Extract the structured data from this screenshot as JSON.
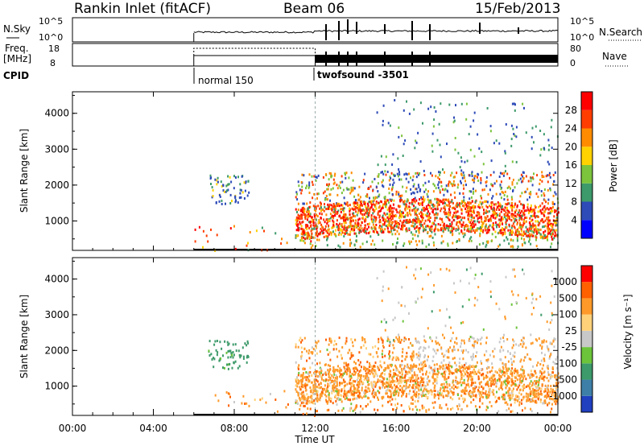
{
  "header": {
    "station": "Rankin Inlet (fitACF)",
    "beam": "Beam 06",
    "date": "15/Feb/2013"
  },
  "chart_data": [
    {
      "type": "line",
      "panel": "noise",
      "left_label": "N.Sky",
      "right_label": "N.Search",
      "left_ticks": [
        "10^5",
        "10^0"
      ],
      "right_ticks": [
        "10^5",
        "10^0"
      ],
      "scale": "log"
    },
    {
      "type": "line",
      "panel": "frequency-nave",
      "left_label_1": "Freq.",
      "left_label_2": "[MHz]",
      "right_label": "Nave",
      "left_ticks": [
        18,
        8
      ],
      "right_ticks": [
        80,
        0
      ],
      "series": [
        {
          "name": "Freq.",
          "x": [
            "06:00",
            "12:00"
          ],
          "y": [
            14,
            14
          ]
        },
        {
          "name": "Nave",
          "x": [
            "06:00",
            "12:00",
            "24:00"
          ],
          "y": [
            65,
            14,
            14
          ]
        }
      ]
    },
    {
      "type": "table",
      "panel": "cpid",
      "label": "CPID",
      "segments": [
        {
          "start": "06:00",
          "name": "normal 150"
        },
        {
          "start": "12:00",
          "name": "twofsound -3501"
        }
      ]
    },
    {
      "type": "heatmap",
      "panel": "power",
      "ylabel": "Slant Range [km]",
      "yticks": [
        1000,
        2000,
        3000,
        4000
      ],
      "ylim": [
        180,
        4600
      ],
      "xlim": [
        "00:00",
        "24:00"
      ],
      "colorbar_label": "Power [dB]",
      "colorbar_ticks": [
        "28",
        "24",
        "20",
        "16",
        "12",
        "8",
        "4"
      ],
      "colors": [
        "#0000ff",
        "#2e4bb8",
        "#3d9a6a",
        "#7cc43c",
        "#ffd200",
        "#ff8c00",
        "#ff3d00",
        "#ff0000"
      ]
    },
    {
      "type": "heatmap",
      "panel": "velocity",
      "ylabel": "Slant Range [km]",
      "yticks": [
        1000,
        2000,
        3000,
        4000
      ],
      "ylim": [
        180,
        4600
      ],
      "xlim": [
        "00:00",
        "24:00"
      ],
      "colorbar_label": "Velocity [m s⁻¹]",
      "colorbar_ticks": [
        "1000",
        "500",
        "100",
        "25",
        "-25",
        "-100",
        "-500",
        "-1000"
      ],
      "colors": [
        "#2040c0",
        "#3e7fa8",
        "#3d9a6a",
        "#6cc43a",
        "#c8c8c8",
        "#ffd27a",
        "#ff9a2a",
        "#ff6000",
        "#ff0000"
      ]
    }
  ],
  "xaxis": {
    "label": "Time UT",
    "ticks": [
      "00:00",
      "04:00",
      "08:00",
      "12:00",
      "16:00",
      "20:00",
      "00:00"
    ]
  }
}
